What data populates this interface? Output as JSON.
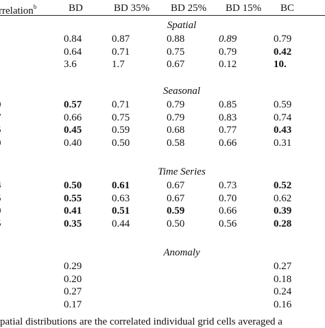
{
  "header": {
    "first_col": "rrelation",
    "first_col_sup": "b",
    "cols": [
      "BD",
      "BD 35%",
      "BD 25%",
      "BD 15%",
      "BC"
    ]
  },
  "sections": [
    {
      "title": "Spatial",
      "rows": [
        {
          "stub": "",
          "cells": [
            {
              "v": "0.84"
            },
            {
              "v": "0.87"
            },
            {
              "v": "0.88"
            },
            {
              "v": "0.89",
              "i": true
            },
            {
              "v": "0.79"
            }
          ]
        },
        {
          "stub": "",
          "cells": [
            {
              "v": "0.64"
            },
            {
              "v": "0.71"
            },
            {
              "v": "0.75"
            },
            {
              "v": "0.79"
            },
            {
              "v": "0.42",
              "b": true
            }
          ]
        },
        {
          "stub": "",
          "cells": [
            {
              "v": "3.6"
            },
            {
              "v": "1.7"
            },
            {
              "v": "0.67"
            },
            {
              "v": "0.12"
            },
            {
              "v": "10.",
              "b": true
            }
          ]
        }
      ]
    },
    {
      "title": "Seasonal",
      "rows": [
        {
          "stub": "0",
          "cells": [
            {
              "v": "0.57",
              "b": true
            },
            {
              "v": "0.71"
            },
            {
              "v": "0.79"
            },
            {
              "v": "0.85"
            },
            {
              "v": "0.59"
            }
          ]
        },
        {
          "stub": "7",
          "cells": [
            {
              "v": "0.66"
            },
            {
              "v": "0.75"
            },
            {
              "v": "0.79"
            },
            {
              "v": "0.83"
            },
            {
              "v": "0.74"
            }
          ]
        },
        {
          "stub": "5",
          "cells": [
            {
              "v": "0.45",
              "b": true
            },
            {
              "v": "0.59"
            },
            {
              "v": "0.68"
            },
            {
              "v": "0.77"
            },
            {
              "v": "0.43",
              "b": true
            }
          ]
        },
        {
          "stub": "0",
          "cells": [
            {
              "v": "0.40"
            },
            {
              "v": "0.50"
            },
            {
              "v": "0.58"
            },
            {
              "v": "0.66"
            },
            {
              "v": "0.31"
            }
          ]
        }
      ]
    },
    {
      "title": "Time Series",
      "rows": [
        {
          "stub": "4",
          "cells": [
            {
              "v": "0.50",
              "b": true
            },
            {
              "v": "0.61",
              "b": true
            },
            {
              "v": "0.67"
            },
            {
              "v": "0.73"
            },
            {
              "v": "0.52",
              "b": true
            }
          ]
        },
        {
          "stub": "5",
          "cells": [
            {
              "v": "0.55",
              "b": true
            },
            {
              "v": "0.63"
            },
            {
              "v": "0.67"
            },
            {
              "v": "0.70"
            },
            {
              "v": "0.62"
            }
          ]
        },
        {
          "stub": "0",
          "cells": [
            {
              "v": "0.41",
              "b": true
            },
            {
              "v": "0.51",
              "b": true
            },
            {
              "v": "0.59",
              "b": true
            },
            {
              "v": "0.66"
            },
            {
              "v": "0.39",
              "b": true
            }
          ]
        },
        {
          "stub": "5",
          "cells": [
            {
              "v": "0.35",
              "b": true
            },
            {
              "v": "0.44"
            },
            {
              "v": "0.50"
            },
            {
              "v": "0.56"
            },
            {
              "v": "0.28",
              "b": true
            }
          ]
        }
      ]
    },
    {
      "title": "Anomaly",
      "rows": [
        {
          "stub": "",
          "cells": [
            {
              "v": "0.29"
            },
            {
              "v": ""
            },
            {
              "v": ""
            },
            {
              "v": ""
            },
            {
              "v": "0.27"
            }
          ]
        },
        {
          "stub": "",
          "cells": [
            {
              "v": "0.20"
            },
            {
              "v": ""
            },
            {
              "v": ""
            },
            {
              "v": ""
            },
            {
              "v": "0.18"
            }
          ]
        },
        {
          "stub": "",
          "cells": [
            {
              "v": "0.27"
            },
            {
              "v": ""
            },
            {
              "v": ""
            },
            {
              "v": ""
            },
            {
              "v": "0.24"
            }
          ]
        },
        {
          "stub": "",
          "cells": [
            {
              "v": "0.17"
            },
            {
              "v": ""
            },
            {
              "v": ""
            },
            {
              "v": ""
            },
            {
              "v": "0.16"
            }
          ]
        }
      ]
    }
  ],
  "footnote": "patial distributions are the correlated individual grid cells averaged a"
}
